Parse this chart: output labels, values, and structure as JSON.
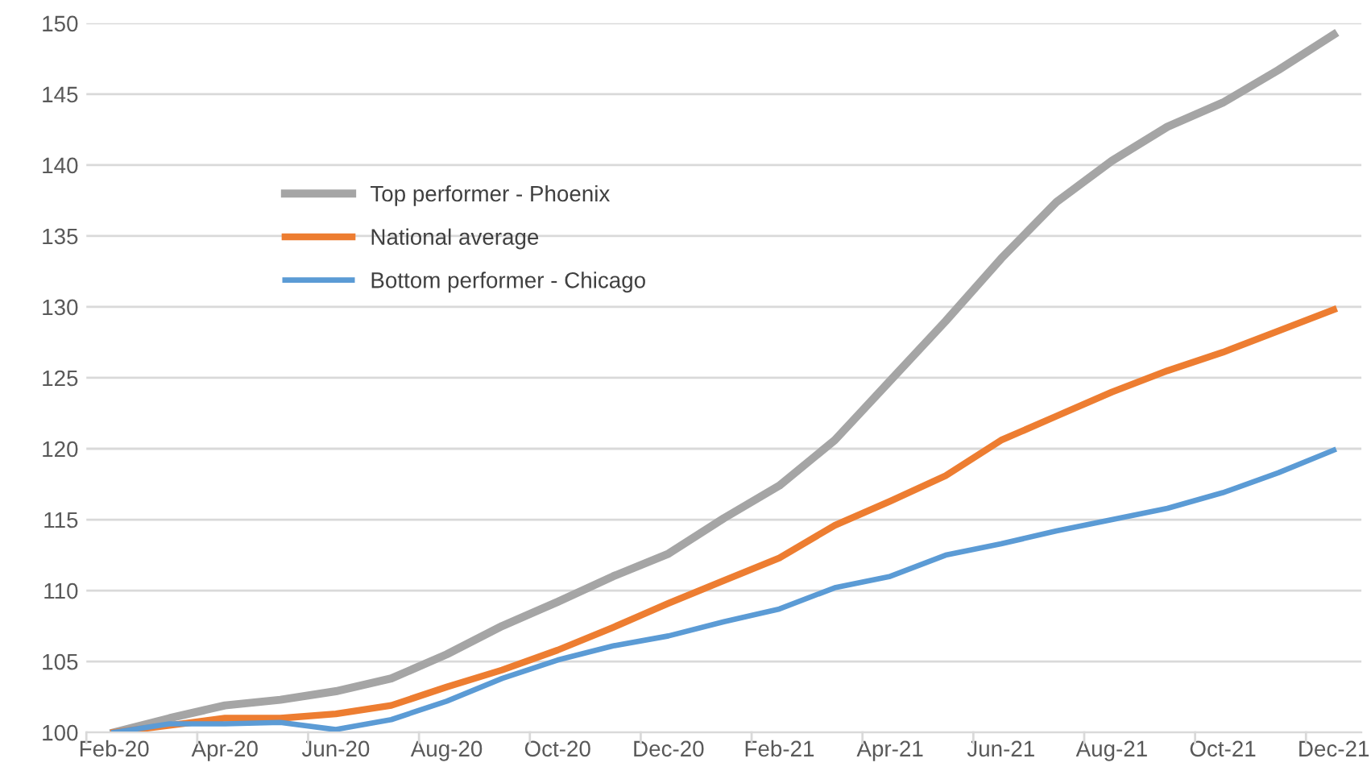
{
  "chart_data": {
    "type": "line",
    "categories": [
      "Feb-20",
      null,
      "Apr-20",
      null,
      "Jun-20",
      null,
      "Aug-20",
      null,
      "Oct-20",
      null,
      "Dec-20",
      null,
      "Feb-21",
      null,
      "Apr-21",
      null,
      "Jun-21",
      null,
      "Aug-21",
      null,
      "Oct-21",
      null,
      "Dec-21"
    ],
    "series": [
      {
        "name": "Top performer - Phoenix",
        "color": "#a5a5a5",
        "values": [
          100,
          101.0,
          101.9,
          102.3,
          102.9,
          103.8,
          105.5,
          107.5,
          109.2,
          111.0,
          112.6,
          115.1,
          117.4,
          120.6,
          124.8,
          129.0,
          133.4,
          137.4,
          140.3,
          142.7,
          144.4,
          146.7,
          149.2
        ]
      },
      {
        "name": "National average",
        "color": "#ed7d31",
        "values": [
          100,
          100.5,
          101.0,
          101.0,
          101.3,
          101.9,
          103.2,
          104.4,
          105.8,
          107.4,
          109.1,
          110.7,
          112.3,
          114.6,
          116.3,
          118.1,
          120.6,
          122.3,
          124.0,
          125.5,
          126.8,
          128.3,
          129.8
        ]
      },
      {
        "name": "Bottom performer - Chicago",
        "color": "#5b9bd5",
        "values": [
          100,
          100.6,
          100.6,
          100.7,
          100.2,
          100.9,
          102.2,
          103.8,
          105.1,
          106.1,
          106.8,
          107.8,
          108.7,
          110.2,
          111.0,
          112.5,
          113.3,
          114.2,
          115.0,
          115.8,
          116.9,
          118.3,
          119.9
        ]
      }
    ],
    "ylim": [
      100,
      150
    ],
    "yticks": [
      100,
      105,
      110,
      115,
      120,
      125,
      130,
      135,
      140,
      145,
      150
    ],
    "grid": "y",
    "legend": "top left",
    "marker": "none",
    "line_style": "solid"
  }
}
